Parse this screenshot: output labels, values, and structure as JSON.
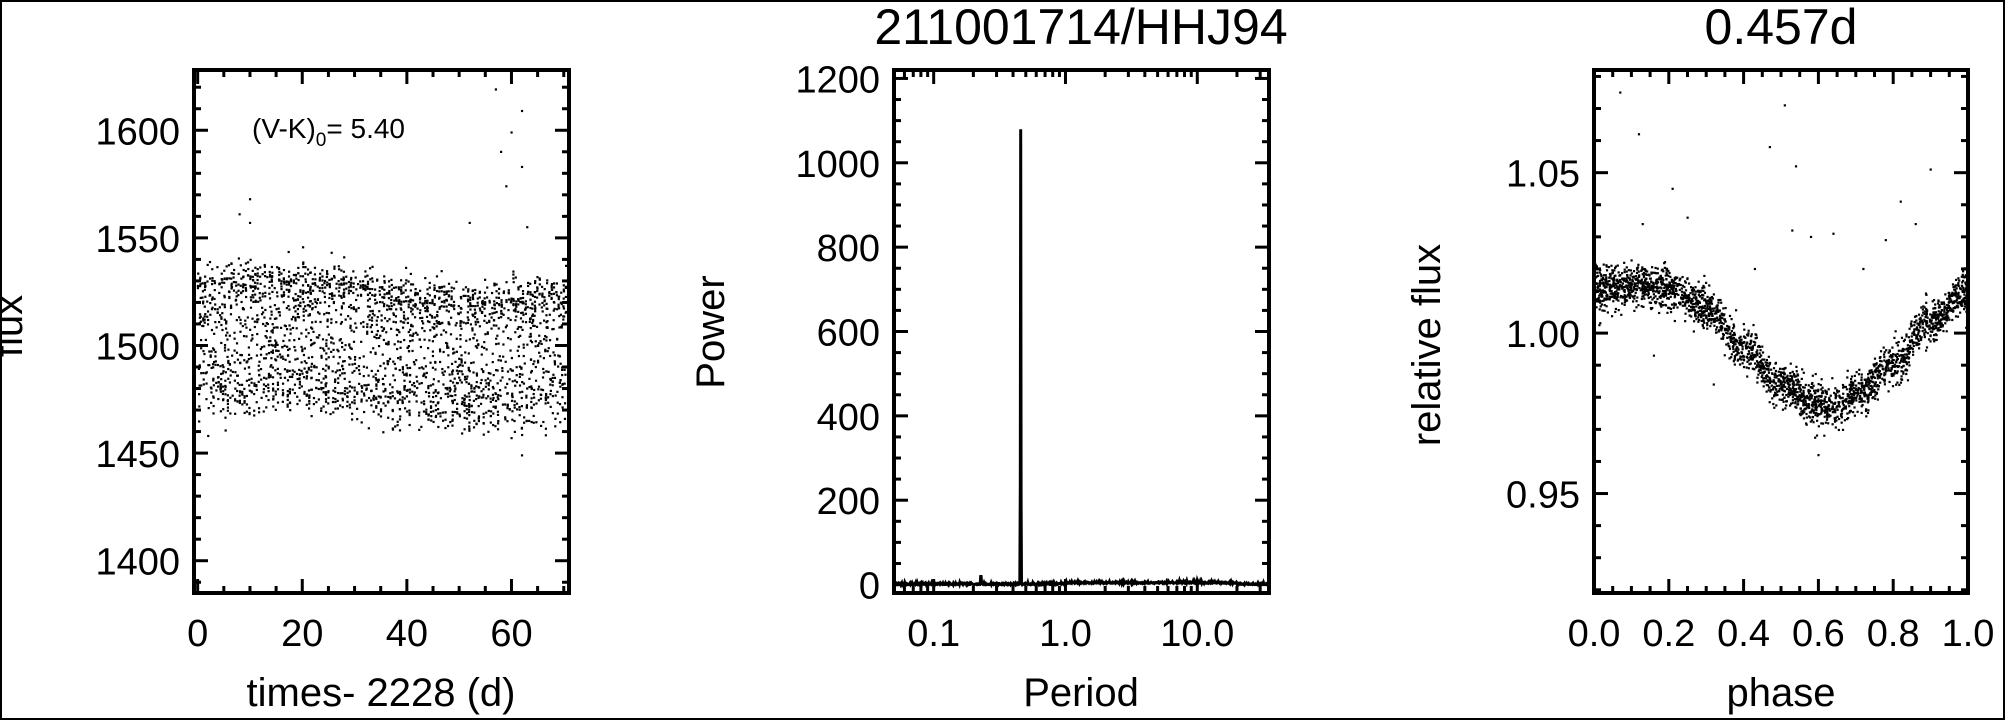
{
  "chart_data": [
    {
      "type": "scatter",
      "title": "",
      "xlabel": "times- 2228 (d)",
      "ylabel": "flux",
      "xlim": [
        -0.7,
        71
      ],
      "ylim": [
        1385,
        1628
      ],
      "xticks": [
        "0",
        "20",
        "40",
        "60"
      ],
      "yticks": [
        "1400",
        "1450",
        "1500",
        "1550",
        "1600"
      ],
      "annotation": {
        "base": "(V-K)",
        "sub": "0",
        "rest": "= 5.40"
      },
      "grid": false,
      "point_color": "#000000",
      "mean_flux": 1500,
      "band_range": [
        1465,
        1535
      ],
      "outliers": [
        [
          1,
          1550
        ],
        [
          8,
          1561
        ],
        [
          10,
          1568
        ],
        [
          10,
          1557
        ],
        [
          28,
          1541
        ],
        [
          52,
          1557
        ],
        [
          57,
          1619
        ],
        [
          58,
          1590
        ],
        [
          60,
          1599
        ],
        [
          62,
          1609
        ],
        [
          62,
          1583
        ],
        [
          63,
          1555
        ],
        [
          59,
          1574
        ],
        [
          62,
          1449
        ],
        [
          60,
          1457
        ],
        [
          2,
          1458
        ]
      ]
    },
    {
      "type": "line",
      "title": "211001714/HHJ94",
      "xlabel": "Period",
      "ylabel": "Power",
      "xscale": "log",
      "xlim": [
        0.05,
        35
      ],
      "ylim": [
        -20,
        1220
      ],
      "xticks": [
        "0.1",
        "1.0",
        "10.0"
      ],
      "yticks": [
        "0",
        "200",
        "400",
        "600",
        "800",
        "1000",
        "1200"
      ],
      "grid": false,
      "line_color": "#000000",
      "peaks": [
        {
          "period": 0.457,
          "power": 1080
        },
        {
          "period": 0.228,
          "power": 20
        }
      ]
    },
    {
      "type": "scatter",
      "title": "0.457d",
      "xlabel": "phase",
      "ylabel": "relative flux",
      "xlim": [
        0,
        1
      ],
      "ylim": [
        0.919,
        1.082
      ],
      "xticks": [
        "0.0",
        "0.2",
        "0.4",
        "0.6",
        "0.8",
        "1.0"
      ],
      "yticks": [
        "0.95",
        "1.00",
        "1.05"
      ],
      "grid": false,
      "point_color": "#000000",
      "binned_phase": [
        0.0,
        0.1,
        0.2,
        0.3,
        0.4,
        0.5,
        0.6,
        0.65,
        0.7,
        0.8,
        0.9,
        1.0
      ],
      "binned_flux": [
        1.014,
        1.015,
        1.014,
        1.008,
        0.995,
        0.984,
        0.978,
        0.977,
        0.981,
        0.99,
        1.004,
        1.013
      ],
      "outliers": [
        [
          0.07,
          1.075
        ],
        [
          0.12,
          1.062
        ],
        [
          0.51,
          1.071
        ],
        [
          0.47,
          1.058
        ],
        [
          0.54,
          1.052
        ],
        [
          0.9,
          1.051
        ],
        [
          0.21,
          1.045
        ],
        [
          0.82,
          1.041
        ],
        [
          0.25,
          1.036
        ],
        [
          0.13,
          1.034
        ],
        [
          0.58,
          1.03
        ],
        [
          0.86,
          1.034
        ],
        [
          0.78,
          1.029
        ],
        [
          0.53,
          1.032
        ],
        [
          0.64,
          1.031
        ],
        [
          0.72,
          1.02
        ],
        [
          0.16,
          0.993
        ],
        [
          0.32,
          0.984
        ],
        [
          0.6,
          0.962
        ],
        [
          0.43,
          1.02
        ]
      ]
    }
  ]
}
